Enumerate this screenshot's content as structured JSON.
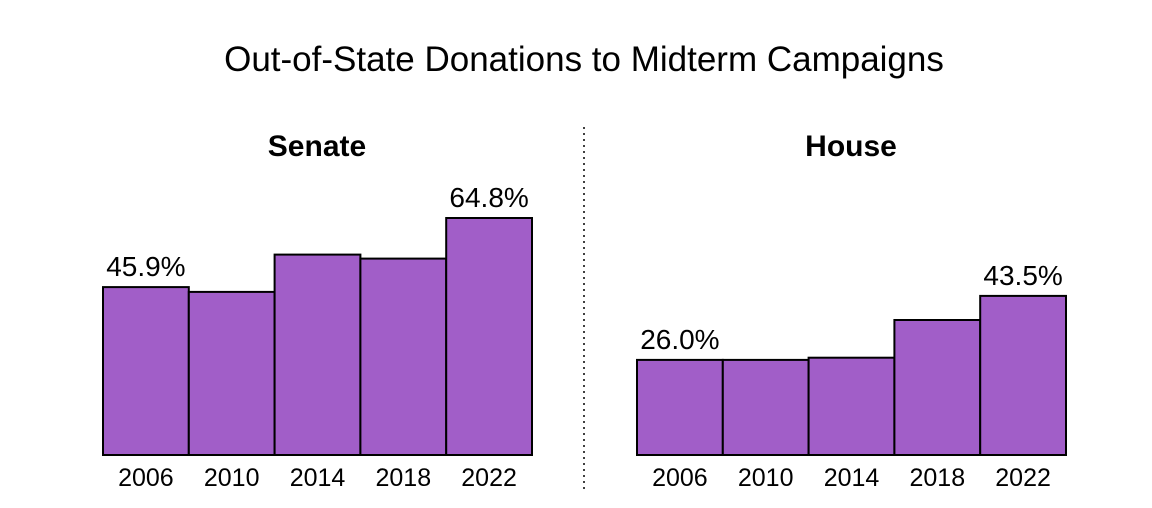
{
  "title": "Out-of-State Donations to Midterm Campaigns",
  "colors": {
    "bar_fill": "#a15ec8",
    "bar_stroke": "#000000",
    "divider": "#000000"
  },
  "chart_data": [
    {
      "type": "bar",
      "title": "Senate",
      "categories": [
        "2006",
        "2010",
        "2014",
        "2018",
        "2022"
      ],
      "values": [
        45.9,
        44.6,
        54.8,
        53.7,
        64.8
      ],
      "data_labels": [
        "45.9%",
        "",
        "",
        "",
        "64.8%"
      ],
      "ylim": [
        0,
        64.8
      ],
      "grid": false
    },
    {
      "type": "bar",
      "title": "House",
      "categories": [
        "2006",
        "2010",
        "2014",
        "2018",
        "2022"
      ],
      "values": [
        26.0,
        26.0,
        26.6,
        36.9,
        43.5
      ],
      "data_labels": [
        "26.0%",
        "",
        "",
        "",
        "43.5%"
      ],
      "ylim": [
        0,
        64.8
      ],
      "grid": false
    }
  ]
}
